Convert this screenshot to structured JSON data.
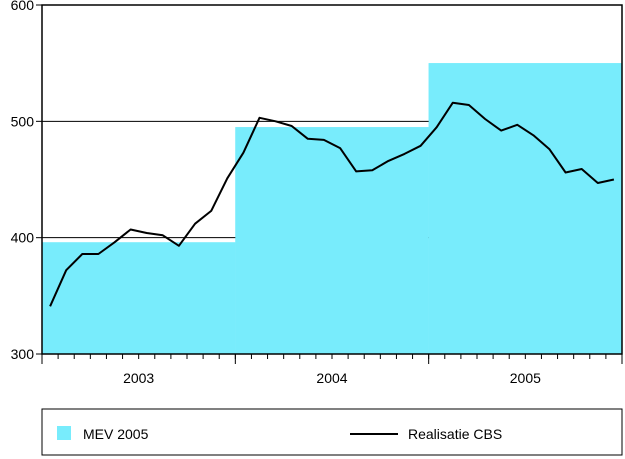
{
  "chart_data": {
    "type": "line",
    "colors": {
      "mev_area": "#78ecfc",
      "line": "#000000",
      "frame": "#000000",
      "background": "#ffffff"
    },
    "ylim": [
      300,
      600
    ],
    "yticks": [
      "300",
      "400",
      "500",
      "600"
    ],
    "gridlines": [
      400,
      500
    ],
    "years": [
      "2003",
      "2004",
      "2005"
    ],
    "months_per_year": 12,
    "series": [
      {
        "name": "MEV 2005",
        "kind": "step-area",
        "values": [
          396,
          495,
          550
        ]
      },
      {
        "name": "Realisatie CBS",
        "kind": "line",
        "values": [
          341,
          372,
          386,
          386,
          396,
          407,
          404,
          402,
          393,
          412,
          423,
          451,
          473,
          503,
          500,
          496,
          485,
          484,
          477,
          457,
          458,
          466,
          472,
          479,
          495,
          516,
          514,
          502,
          492,
          497,
          488,
          476,
          456,
          459,
          447,
          450
        ]
      }
    ],
    "legend": {
      "placement": "bottom",
      "items": [
        "MEV 2005",
        "Realisatie CBS"
      ]
    }
  }
}
